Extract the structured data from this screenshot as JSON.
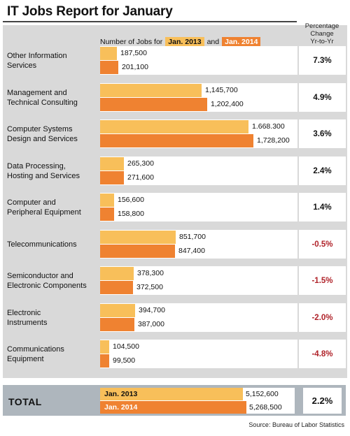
{
  "title": "IT Jobs Report for January",
  "pct_header": [
    "Percentage",
    "Change",
    "Yr-to-Yr"
  ],
  "legend": {
    "prefix": "Number of Jobs for",
    "series_2013": "Jan. 2013",
    "joiner": "and",
    "series_2014": "Jan. 2014"
  },
  "colors": {
    "jan_2013": "#f8bf5a",
    "jan_2014": "#ef8231",
    "negative": "#b0232a"
  },
  "chart_data": {
    "type": "bar",
    "title": "IT Jobs Report for January",
    "orientation": "horizontal",
    "categories": [
      [
        "Other Information",
        "Services"
      ],
      [
        "Management and",
        "Technical Consulting"
      ],
      [
        "Computer Systems",
        "Design and Services"
      ],
      [
        "Data Processing,",
        "Hosting and Services"
      ],
      [
        "Computer and",
        "Peripheral Equipment"
      ],
      [
        "Telecommunications"
      ],
      [
        "Semiconductor and",
        "Electronic Components"
      ],
      [
        "Electronic",
        "Instruments"
      ],
      [
        "Communications",
        "Equipment"
      ]
    ],
    "series": [
      {
        "name": "Jan. 2013",
        "values": [
          187500,
          1145700,
          1668300,
          265300,
          156600,
          851700,
          378300,
          394700,
          104500
        ],
        "labels": [
          "187,500",
          "1,145,700",
          "1.668.300",
          "265,300",
          "156,600",
          "851,700",
          "378,300",
          "394,700",
          "104,500"
        ]
      },
      {
        "name": "Jan. 2014",
        "values": [
          201100,
          1202400,
          1728200,
          271600,
          158800,
          847400,
          372500,
          387000,
          99500
        ],
        "labels": [
          "201,100",
          "1,202,400",
          "1,728,200",
          "271,600",
          "158,800",
          "847,400",
          "372,500",
          "387,000",
          "99,500"
        ]
      }
    ],
    "pct_change": [
      "7.3%",
      "4.9%",
      "3.6%",
      "2.4%",
      "1.4%",
      "-0.5%",
      "-1.5%",
      "-2.0%",
      "-4.8%"
    ],
    "pct_negative": [
      false,
      false,
      false,
      false,
      false,
      true,
      true,
      true,
      true
    ],
    "xlim": [
      0,
      1750000
    ],
    "total": {
      "label": "TOTAL",
      "values": [
        5152600,
        5268500
      ],
      "labels": [
        "5,152,600",
        "5,268,500"
      ],
      "pct_change": "2.2%"
    }
  },
  "source": "Source: Bureau of Labor Statistics"
}
